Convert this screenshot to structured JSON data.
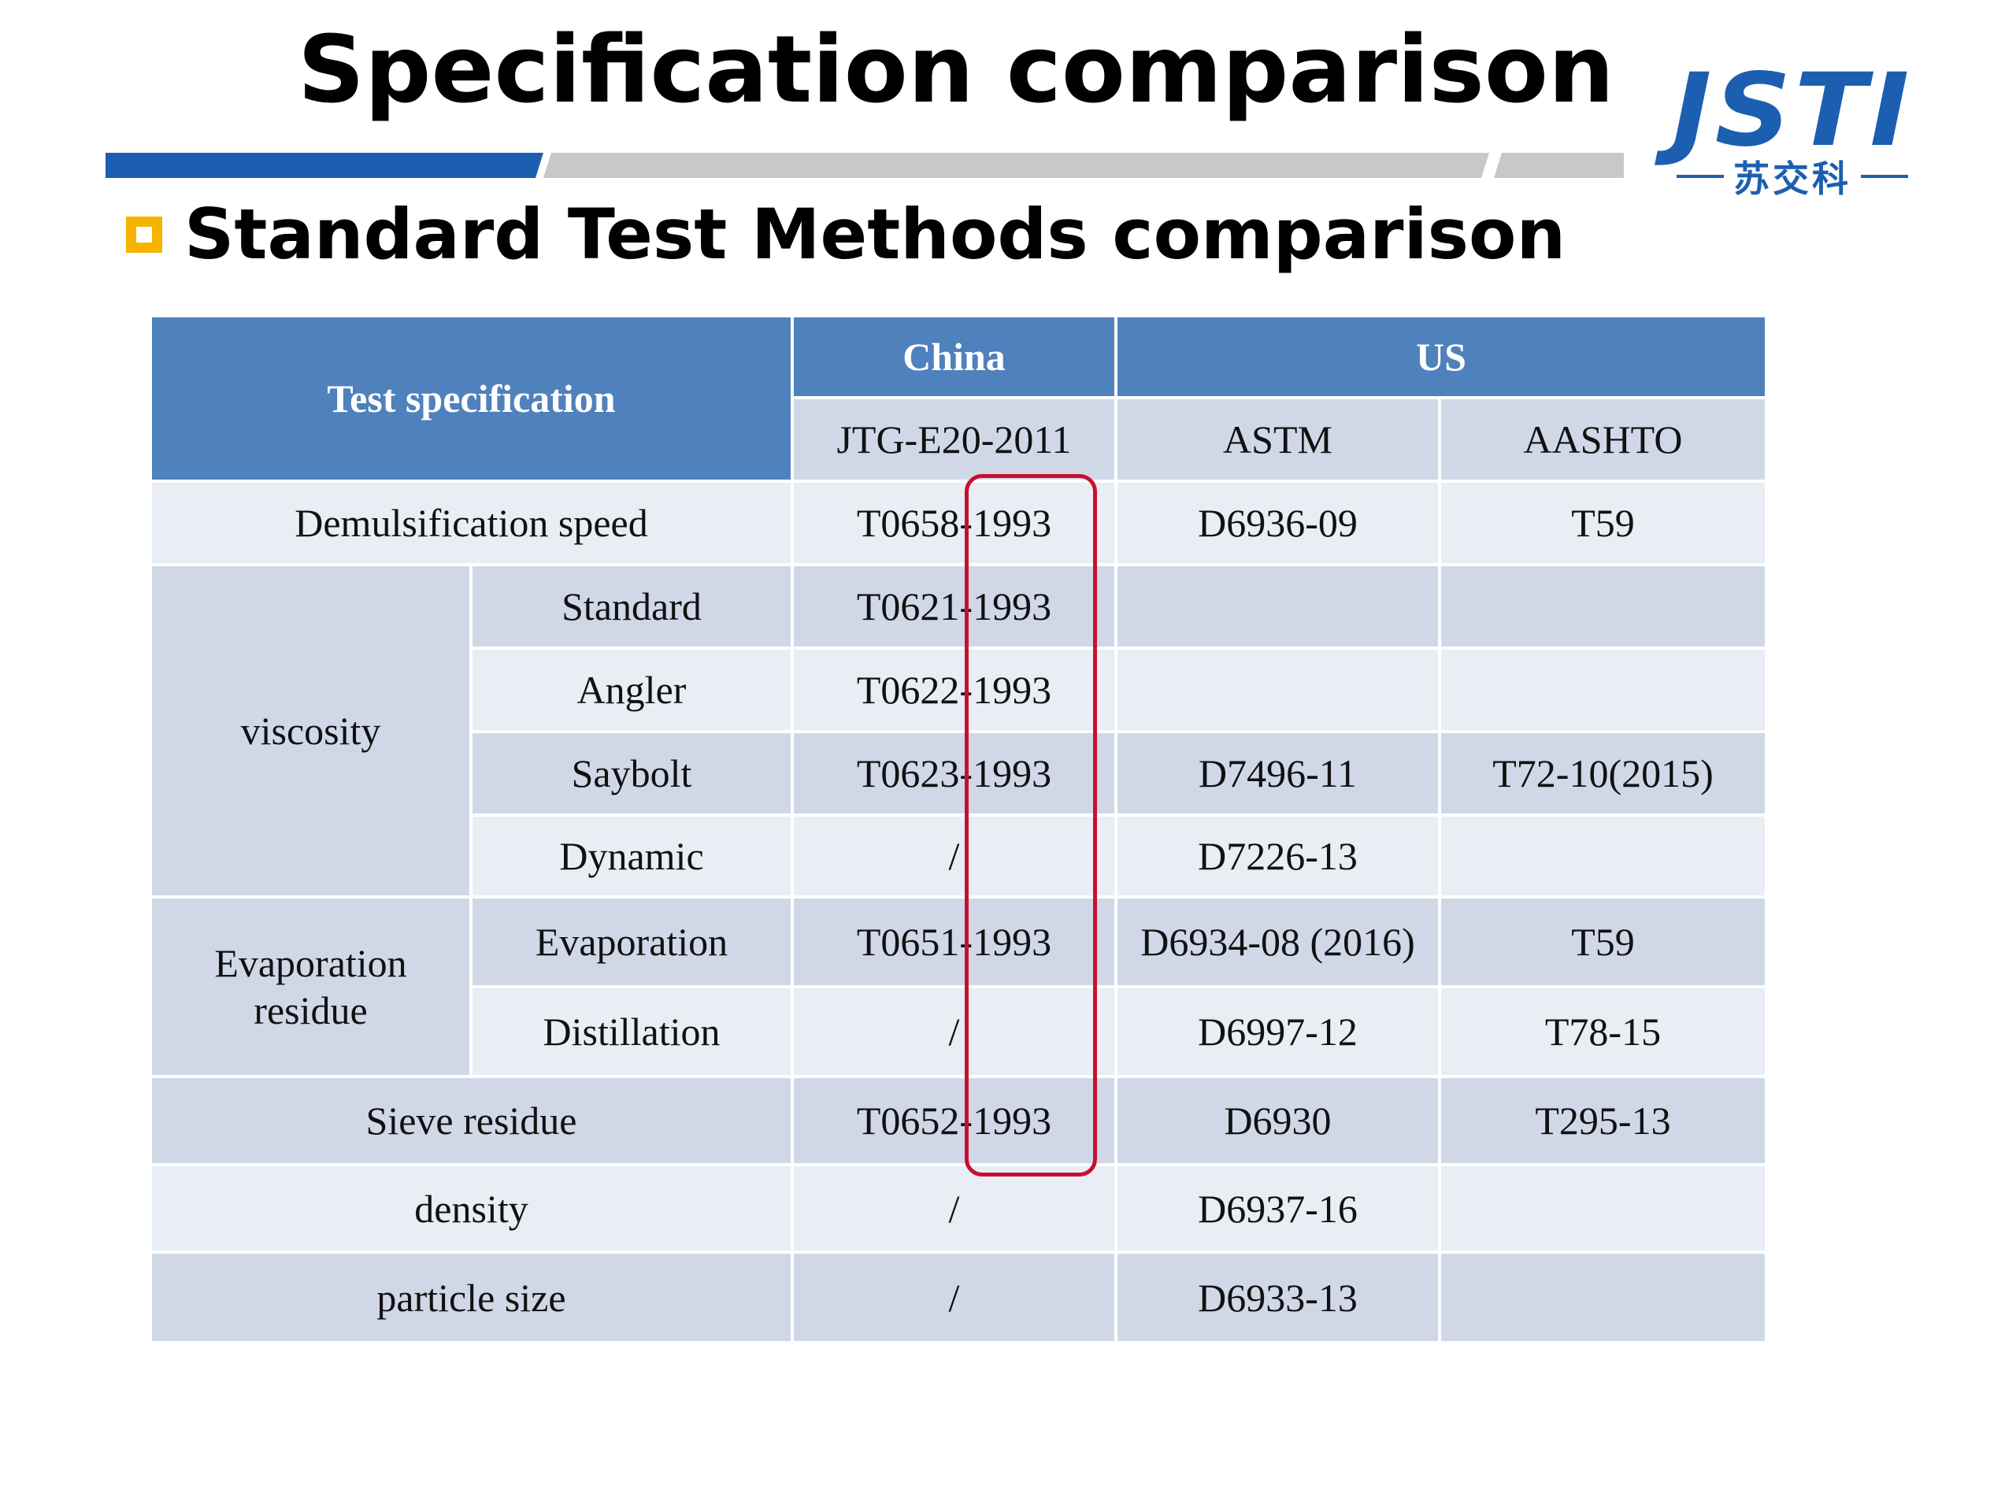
{
  "slide": {
    "title": "Specification comparison",
    "subtitle": "Standard Test Methods comparison"
  },
  "logo": {
    "mark": "JSTI",
    "chinese": "苏交科",
    "color": "#1c5fb0"
  },
  "colors": {
    "header_blue": "#4f81bd",
    "row_dark": "#d0d8e8",
    "row_light": "#e9edf4",
    "bar_blue": "#1c5fb0",
    "bar_gray": "#c8c8c8",
    "bullet": "#f6b400",
    "highlight": "#c8102e"
  },
  "table": {
    "header": {
      "spec": "Test specification",
      "china": "China",
      "us": "US",
      "jtg": "JTG-E20-2011",
      "astm": "ASTM",
      "aashto": "AASHTO"
    },
    "groups": {
      "viscosity": "viscosity",
      "evaporation": "Evaporation residue"
    },
    "rows": [
      {
        "spec": "Demulsification speed",
        "china": "T0658-1993",
        "astm": "D6936-09",
        "aashto": "T59"
      },
      {
        "sub": "Standard",
        "china": "T0621-1993",
        "astm": "",
        "aashto": ""
      },
      {
        "sub": "Angler",
        "china": "T0622-1993",
        "astm": "",
        "aashto": ""
      },
      {
        "sub": "Saybolt",
        "china": "T0623-1993",
        "astm": "D7496-11",
        "aashto": "T72-10(2015)"
      },
      {
        "sub": "Dynamic",
        "china": "/",
        "astm": "D7226-13",
        "aashto": ""
      },
      {
        "sub": "Evaporation",
        "china": "T0651-1993",
        "astm": "D6934-08 (2016)",
        "aashto": "T59"
      },
      {
        "sub": "Distillation",
        "china": "/",
        "astm": "D6997-12",
        "aashto": "T78-15"
      },
      {
        "spec": "Sieve residue",
        "china": "T0652-1993",
        "astm": "D6930",
        "aashto": "T295-13"
      },
      {
        "spec": "density",
        "china": "/",
        "astm": "D6937-16",
        "aashto": ""
      },
      {
        "spec": "particle size",
        "china": "/",
        "astm": "D6933-13",
        "aashto": ""
      }
    ]
  }
}
